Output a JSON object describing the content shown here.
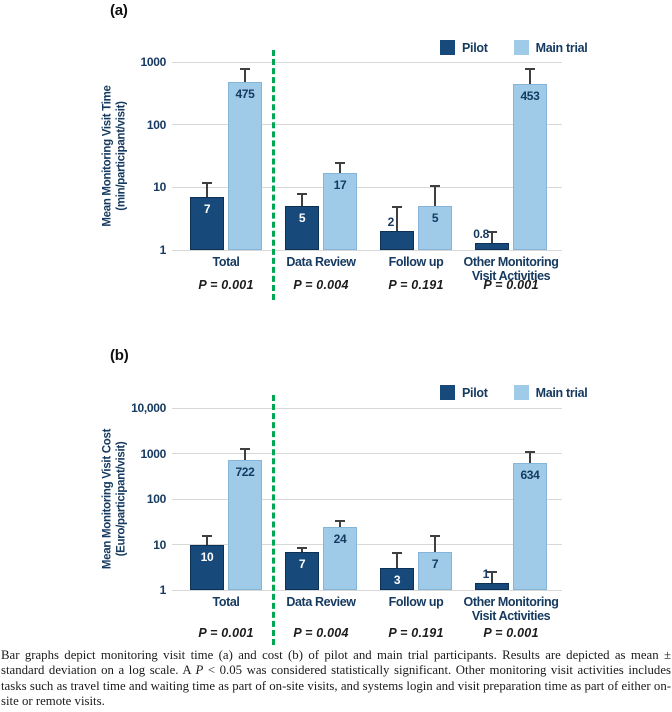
{
  "figure": {
    "colors": {
      "pilot": "#17497b",
      "main": "#9fcbe9",
      "navy": "#163a60",
      "green": "#00a651",
      "grid": "#d8d8d8",
      "error": "#3f3f3f"
    },
    "legend": {
      "pilot_label": "Pilot",
      "main_label": "Main trial"
    }
  },
  "chart_data": [
    {
      "id": "a",
      "type": "bar",
      "scale": "log",
      "panel_label": "(a)",
      "ylabel_line1": "Mean Monitoring Visit Time",
      "ylabel_line2": "(min/participant/visit)",
      "yticks": [
        "1000",
        "100",
        "10",
        "1"
      ],
      "ylim": [
        1,
        1000
      ],
      "categories": [
        "Total",
        "Data Review",
        "Follow up",
        "Other Monitoring\nVisit Activities"
      ],
      "p_values": [
        "P = 0.001",
        "P = 0.004",
        "P = 0.191",
        "P = 0.001"
      ],
      "series": [
        {
          "name": "Pilot",
          "values": [
            7,
            5,
            2,
            0.8
          ],
          "labels": [
            "7",
            "5",
            "2",
            "0.8"
          ],
          "error_top": [
            12,
            8,
            5,
            2
          ]
        },
        {
          "name": "Main trial",
          "values": [
            475,
            17,
            5,
            453
          ],
          "labels": [
            "475",
            "17",
            "5",
            "453"
          ],
          "error_top": [
            800,
            25,
            11,
            800
          ]
        }
      ]
    },
    {
      "id": "b",
      "type": "bar",
      "scale": "log",
      "panel_label": "(b)",
      "ylabel_line1": "Mean Monitoring Visit Cost",
      "ylabel_line2": "(Euro/participant/visit)",
      "yticks": [
        "10,000",
        "1000",
        "100",
        "10",
        "1"
      ],
      "ylim": [
        1,
        10000
      ],
      "categories": [
        "Total",
        "Data Review",
        "Follow up",
        "Other Monitoring\nVisit Activities"
      ],
      "p_values": [
        "P = 0.001",
        "P = 0.004",
        "P = 0.191",
        "P = 0.001"
      ],
      "series": [
        {
          "name": "Pilot",
          "values": [
            10,
            7,
            3,
            1
          ],
          "labels": [
            "10",
            "7",
            "3",
            "1"
          ],
          "error_top": [
            16,
            9,
            7,
            2.6
          ]
        },
        {
          "name": "Main trial",
          "values": [
            722,
            24,
            7,
            634
          ],
          "labels": [
            "722",
            "24",
            "7",
            "634"
          ],
          "error_top": [
            1300,
            35,
            16,
            1150
          ]
        }
      ]
    }
  ],
  "caption": {
    "segments": [
      {
        "t": "Bar graphs depict monitoring visit time (a) and cost (b) of pilot and main trial participants. Results are depicted as mean ± standard deviation on a log scale. A ",
        "i": false
      },
      {
        "t": "P",
        "i": true
      },
      {
        "t": " < 0.05 was considered statistically significant. Other monitoring visit activities includes tasks such as travel time and waiting time as part of on-site visits, and systems login and visit preparation time as part of either on-site or remote visits.",
        "i": false
      }
    ]
  }
}
